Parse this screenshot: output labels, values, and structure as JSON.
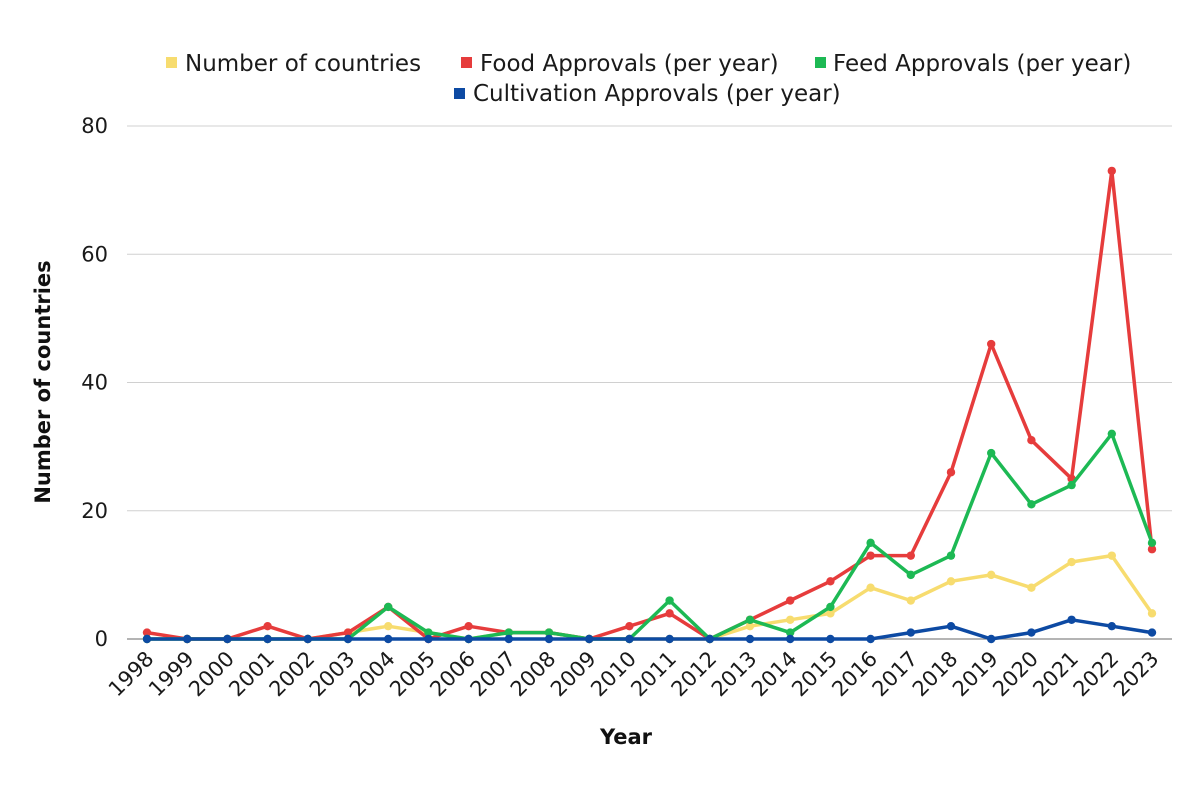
{
  "chart_data": {
    "type": "line",
    "xlabel": "Year",
    "ylabel": "Number of countries",
    "ylim": [
      0,
      80
    ],
    "yticks": [
      0,
      20,
      40,
      60,
      80
    ],
    "grid": true,
    "legend_position": "top",
    "x": [
      "1998",
      "1999",
      "2000",
      "2001",
      "2002",
      "2003",
      "2004",
      "2005",
      "2006",
      "2007",
      "2008",
      "2009",
      "2010",
      "2011",
      "2012",
      "2013",
      "2014",
      "2015",
      "2016",
      "2017",
      "2018",
      "2019",
      "2020",
      "2021",
      "2022",
      "2023"
    ],
    "series": [
      {
        "name": "Number of countries",
        "color": "#f7dc6f",
        "values": [
          0,
          0,
          0,
          0,
          0,
          1,
          2,
          1,
          0,
          1,
          1,
          0,
          0,
          0,
          0,
          2,
          3,
          4,
          8,
          6,
          9,
          10,
          8,
          12,
          13,
          4
        ]
      },
      {
        "name": "Food Approvals (per year)",
        "color": "#e63c3c",
        "values": [
          1,
          0,
          0,
          2,
          0,
          1,
          5,
          0,
          2,
          1,
          1,
          0,
          2,
          4,
          0,
          3,
          6,
          9,
          13,
          13,
          26,
          46,
          31,
          25,
          73,
          14
        ]
      },
      {
        "name": "Feed Approvals (per year)",
        "color": "#1db954",
        "values": [
          0,
          0,
          0,
          0,
          0,
          0,
          5,
          1,
          0,
          1,
          1,
          0,
          0,
          6,
          0,
          3,
          1,
          5,
          15,
          10,
          13,
          29,
          21,
          24,
          32,
          15
        ]
      },
      {
        "name": "Cultivation Approvals (per year)",
        "color": "#0d4aa3",
        "values": [
          0,
          0,
          0,
          0,
          0,
          0,
          0,
          0,
          0,
          0,
          0,
          0,
          0,
          0,
          0,
          0,
          0,
          0,
          0,
          1,
          2,
          0,
          1,
          3,
          2,
          1
        ]
      }
    ]
  }
}
